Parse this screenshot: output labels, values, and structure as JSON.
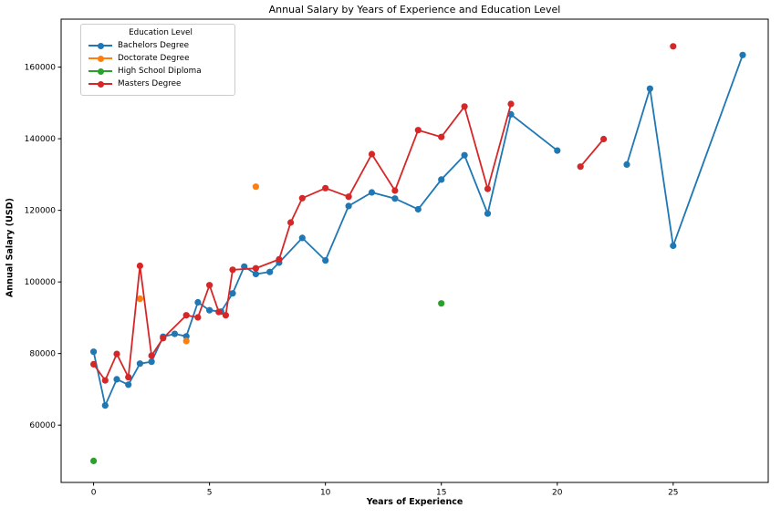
{
  "figure": {
    "title": "Annual Salary by Years of Experience and Education Level",
    "xlabel": "Years of Experience",
    "ylabel": "Annual Salary (USD)",
    "background_color": "#ffffff",
    "spine_color": "#000000",
    "tick_color": "#000000"
  },
  "legend": {
    "title": "Education Level",
    "entries": [
      {
        "label": "Bachelors Degree",
        "color": "#1f77b4"
      },
      {
        "label": "Doctorate Degree",
        "color": "#ff7f0e"
      },
      {
        "label": "High School Diploma",
        "color": "#2ca02c"
      },
      {
        "label": "Masters Degree",
        "color": "#d62728"
      }
    ]
  },
  "chart_data": {
    "type": "line",
    "title": "Annual Salary by Years of Experience and Education Level",
    "xlabel": "Years of Experience",
    "ylabel": "Annual Salary (USD)",
    "xlim": [
      -1.4,
      29.1
    ],
    "ylim": [
      44000,
      173400
    ],
    "xticks": [
      0,
      5,
      10,
      15,
      20,
      25
    ],
    "yticks": [
      60000,
      80000,
      100000,
      120000,
      140000,
      160000
    ],
    "grid": false,
    "legend_position": "upper-left",
    "marker": "circle",
    "series": [
      {
        "name": "Bachelors Degree",
        "color": "#1f77b4",
        "segments": [
          [
            [
              0,
              80500
            ],
            [
              0.5,
              65500
            ],
            [
              1,
              72800
            ],
            [
              1.5,
              71300
            ],
            [
              2,
              77200
            ],
            [
              2.5,
              77700
            ],
            [
              3,
              84700
            ],
            [
              3.5,
              85500
            ],
            [
              4,
              84800
            ],
            [
              4.5,
              94300
            ],
            [
              5,
              92100
            ],
            [
              5.5,
              91700
            ],
            [
              6,
              96800
            ],
            [
              6.5,
              104300
            ],
            [
              7,
              102200
            ],
            [
              7.6,
              102800
            ],
            [
              8,
              105400
            ],
            [
              9,
              112300
            ],
            [
              10,
              106000
            ],
            [
              11,
              121200
            ],
            [
              12,
              125000
            ],
            [
              13,
              123300
            ],
            [
              14,
              120300
            ],
            [
              15,
              128600
            ],
            [
              16,
              135400
            ],
            [
              17,
              119100
            ],
            [
              18,
              146800
            ],
            [
              20,
              136700
            ]
          ],
          [
            [
              23,
              132800
            ],
            [
              24,
              154000
            ],
            [
              25,
              110100
            ],
            [
              28,
              163400
            ]
          ]
        ]
      },
      {
        "name": "Doctorate Degree",
        "color": "#ff7f0e",
        "segments": [
          [
            [
              2,
              95300
            ]
          ],
          [
            [
              4,
              83500
            ]
          ],
          [
            [
              7,
              126600
            ]
          ]
        ]
      },
      {
        "name": "High School Diploma",
        "color": "#2ca02c",
        "segments": [
          [
            [
              0,
              50000
            ]
          ],
          [
            [
              15,
              94000
            ]
          ]
        ]
      },
      {
        "name": "Masters Degree",
        "color": "#d62728",
        "segments": [
          [
            [
              0,
              77000
            ],
            [
              0.5,
              72500
            ],
            [
              1,
              79900
            ],
            [
              1.5,
              73400
            ],
            [
              2,
              104500
            ],
            [
              2.5,
              79400
            ],
            [
              3,
              84300
            ],
            [
              4,
              90700
            ],
            [
              4.5,
              90100
            ],
            [
              5,
              99100
            ],
            [
              5.4,
              91600
            ],
            [
              5.7,
              90700
            ],
            [
              6,
              103400
            ],
            [
              7,
              103800
            ],
            [
              8,
              106300
            ],
            [
              8.5,
              116600
            ],
            [
              9,
              123400
            ],
            [
              10,
              126200
            ],
            [
              11,
              123800
            ],
            [
              12,
              135700
            ],
            [
              13,
              125500
            ],
            [
              14,
              142400
            ],
            [
              15,
              140500
            ],
            [
              16,
              149000
            ],
            [
              17,
              126000
            ],
            [
              18,
              149700
            ]
          ],
          [
            [
              21,
              132200
            ],
            [
              22,
              139900
            ]
          ],
          [
            [
              25,
              165800
            ]
          ]
        ]
      }
    ]
  }
}
